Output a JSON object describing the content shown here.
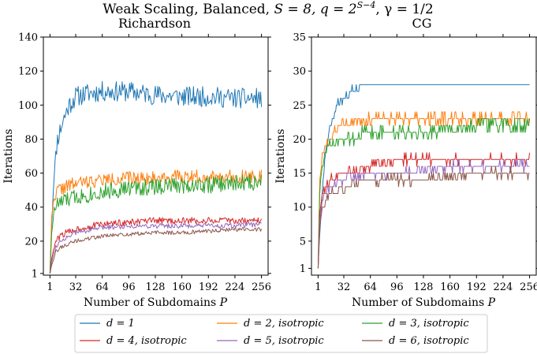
{
  "figure": {
    "suptitle": "Weak Scaling, Balanced, S = 8, q = 2^{S−4}, γ = 1/2",
    "suptitle_parts": {
      "prefix": "Weak Scaling, Balanced, ",
      "s_expr": "S = 8, q = 2",
      "exponent": "S−4",
      "suffix": ", γ = 1/2"
    }
  },
  "legend": {
    "entries": [
      {
        "label": "d = 1",
        "color": "#1f77b4"
      },
      {
        "label": "d = 2, isotropic",
        "color": "#ff7f0e"
      },
      {
        "label": "d = 3, isotropic",
        "color": "#2ca02c"
      },
      {
        "label": "d = 4, isotropic",
        "color": "#d62728"
      },
      {
        "label": "d = 5, isotropic",
        "color": "#9467bd"
      },
      {
        "label": "d = 6, isotropic",
        "color": "#8c564b"
      }
    ]
  },
  "chart_data": [
    {
      "type": "line",
      "title": "Richardson",
      "xlabel": "Number of Subdomains P",
      "ylabel": "Iterations",
      "xlim": [
        -7,
        264
      ],
      "ylim": [
        0,
        140
      ],
      "x_ticks": [
        1,
        32,
        64,
        96,
        128,
        160,
        192,
        224,
        256
      ],
      "x_tick_labels": [
        "1",
        "32",
        "64",
        "96",
        "128",
        "160",
        "192",
        "224",
        "256"
      ],
      "y_ticks": [
        0,
        20,
        40,
        60,
        80,
        100,
        120,
        140
      ],
      "y_tick_labels": [
        "1",
        "20",
        "40",
        "60",
        "80",
        "100",
        "120",
        "140"
      ],
      "y_first_tick_value": 1,
      "x_range": [
        1,
        256
      ],
      "series": [
        {
          "name": "d = 1",
          "color": "#1f77b4",
          "keypoints": [
            [
              1,
              1
            ],
            [
              3,
              30
            ],
            [
              6,
              60
            ],
            [
              10,
              80
            ],
            [
              16,
              90
            ],
            [
              24,
              100
            ],
            [
              32,
              105
            ],
            [
              48,
              107
            ],
            [
              64,
              108
            ],
            [
              96,
              108
            ],
            [
              128,
              106
            ],
            [
              160,
              105
            ],
            [
              192,
              105
            ],
            [
              224,
              104
            ],
            [
              256,
              104
            ]
          ],
          "noise": 6,
          "seed": 11
        },
        {
          "name": "d = 2, isotropic",
          "color": "#ff7f0e",
          "keypoints": [
            [
              1,
              1
            ],
            [
              3,
              35
            ],
            [
              6,
              45
            ],
            [
              10,
              50
            ],
            [
              20,
              52
            ],
            [
              32,
              54
            ],
            [
              64,
              56
            ],
            [
              96,
              57
            ],
            [
              128,
              57
            ],
            [
              160,
              58
            ],
            [
              192,
              58
            ],
            [
              224,
              58
            ],
            [
              256,
              58
            ]
          ],
          "noise": 4,
          "seed": 22
        },
        {
          "name": "d = 3, isotropic",
          "color": "#2ca02c",
          "keypoints": [
            [
              1,
              1
            ],
            [
              3,
              25
            ],
            [
              6,
              38
            ],
            [
              10,
              42
            ],
            [
              20,
              44
            ],
            [
              32,
              46
            ],
            [
              64,
              49
            ],
            [
              96,
              51
            ],
            [
              128,
              52
            ],
            [
              160,
              53
            ],
            [
              192,
              53
            ],
            [
              224,
              54
            ],
            [
              256,
              55
            ]
          ],
          "noise": 5,
          "seed": 33
        },
        {
          "name": "d = 4, isotropic",
          "color": "#d62728",
          "keypoints": [
            [
              1,
              1
            ],
            [
              3,
              10
            ],
            [
              8,
              20
            ],
            [
              16,
              24
            ],
            [
              32,
              27
            ],
            [
              64,
              30
            ],
            [
              96,
              31
            ],
            [
              128,
              32
            ],
            [
              160,
              32
            ],
            [
              192,
              32
            ],
            [
              224,
              32
            ],
            [
              256,
              32
            ]
          ],
          "noise": 2,
          "seed": 44
        },
        {
          "name": "d = 5, isotropic",
          "color": "#9467bd",
          "keypoints": [
            [
              1,
              1
            ],
            [
              3,
              8
            ],
            [
              8,
              17
            ],
            [
              16,
              21
            ],
            [
              32,
              25
            ],
            [
              64,
              28
            ],
            [
              96,
              29
            ],
            [
              128,
              29
            ],
            [
              160,
              29
            ],
            [
              192,
              29
            ],
            [
              224,
              29
            ],
            [
              256,
              30
            ]
          ],
          "noise": 1.5,
          "seed": 55
        },
        {
          "name": "d = 6, isotropic",
          "color": "#8c564b",
          "keypoints": [
            [
              1,
              1
            ],
            [
              3,
              6
            ],
            [
              8,
              14
            ],
            [
              16,
              17
            ],
            [
              32,
              20
            ],
            [
              64,
              23
            ],
            [
              96,
              24
            ],
            [
              128,
              25
            ],
            [
              160,
              25
            ],
            [
              192,
              26
            ],
            [
              224,
              27
            ],
            [
              256,
              27
            ]
          ],
          "noise": 1.2,
          "seed": 66
        }
      ]
    },
    {
      "type": "line",
      "title": "CG",
      "xlabel": "Number of Subdomains P",
      "ylabel": "Iterations",
      "xlim": [
        -7,
        264
      ],
      "ylim": [
        0,
        35
      ],
      "x_ticks": [
        1,
        32,
        64,
        96,
        128,
        160,
        192,
        224,
        256
      ],
      "x_tick_labels": [
        "1",
        "32",
        "64",
        "96",
        "128",
        "160",
        "192",
        "224",
        "256"
      ],
      "y_ticks": [
        0,
        5,
        10,
        15,
        20,
        25,
        30,
        35
      ],
      "y_tick_labels": [
        "1",
        "5",
        "10",
        "15",
        "20",
        "25",
        "30",
        "35"
      ],
      "y_first_tick_value": 1,
      "x_range": [
        1,
        256
      ],
      "series": [
        {
          "name": "d = 1",
          "color": "#1f77b4",
          "keypoints": [
            [
              1,
              1
            ],
            [
              3,
              6
            ],
            [
              6,
              12
            ],
            [
              10,
              18
            ],
            [
              16,
              22
            ],
            [
              24,
              25
            ],
            [
              32,
              26
            ],
            [
              40,
              27
            ],
            [
              56,
              28
            ],
            [
              256,
              28
            ]
          ],
          "noise": 0.5,
          "seed": 71,
          "stepped": true
        },
        {
          "name": "d = 2, isotropic",
          "color": "#ff7f0e",
          "keypoints": [
            [
              1,
              1
            ],
            [
              3,
              14
            ],
            [
              6,
              18
            ],
            [
              10,
              19
            ],
            [
              16,
              20
            ],
            [
              24,
              22
            ],
            [
              64,
              23
            ],
            [
              128,
              23
            ],
            [
              256,
              23
            ]
          ],
          "noise": 0.7,
          "seed": 72,
          "stepped": true
        },
        {
          "name": "d = 3, isotropic",
          "color": "#2ca02c",
          "keypoints": [
            [
              1,
              1
            ],
            [
              3,
              12
            ],
            [
              6,
              16
            ],
            [
              10,
              18
            ],
            [
              16,
              19
            ],
            [
              32,
              20
            ],
            [
              64,
              21
            ],
            [
              128,
              21
            ],
            [
              192,
              22
            ],
            [
              256,
              22
            ]
          ],
          "noise": 1.0,
          "seed": 73,
          "stepped": true
        },
        {
          "name": "d = 4, isotropic",
          "color": "#d62728",
          "keypoints": [
            [
              1,
              1
            ],
            [
              3,
              9
            ],
            [
              6,
              12
            ],
            [
              16,
              14
            ],
            [
              32,
              15
            ],
            [
              64,
              16
            ],
            [
              96,
              17
            ],
            [
              160,
              17
            ],
            [
              256,
              17
            ]
          ],
          "noise": 0.6,
          "seed": 74,
          "stepped": true
        },
        {
          "name": "d = 5, isotropic",
          "color": "#9467bd",
          "keypoints": [
            [
              1,
              1
            ],
            [
              3,
              8
            ],
            [
              6,
              11
            ],
            [
              16,
              13
            ],
            [
              32,
              14
            ],
            [
              64,
              15
            ],
            [
              96,
              15
            ],
            [
              160,
              16
            ],
            [
              256,
              16
            ]
          ],
          "noise": 0.6,
          "seed": 75,
          "stepped": true
        },
        {
          "name": "d = 6, isotropic",
          "color": "#8c564b",
          "keypoints": [
            [
              1,
              1
            ],
            [
              3,
              7
            ],
            [
              6,
              10
            ],
            [
              16,
              12
            ],
            [
              32,
              13
            ],
            [
              64,
              14
            ],
            [
              128,
              14
            ],
            [
              192,
              15
            ],
            [
              256,
              15
            ]
          ],
          "noise": 0.6,
          "seed": 76,
          "stepped": true
        }
      ]
    }
  ]
}
